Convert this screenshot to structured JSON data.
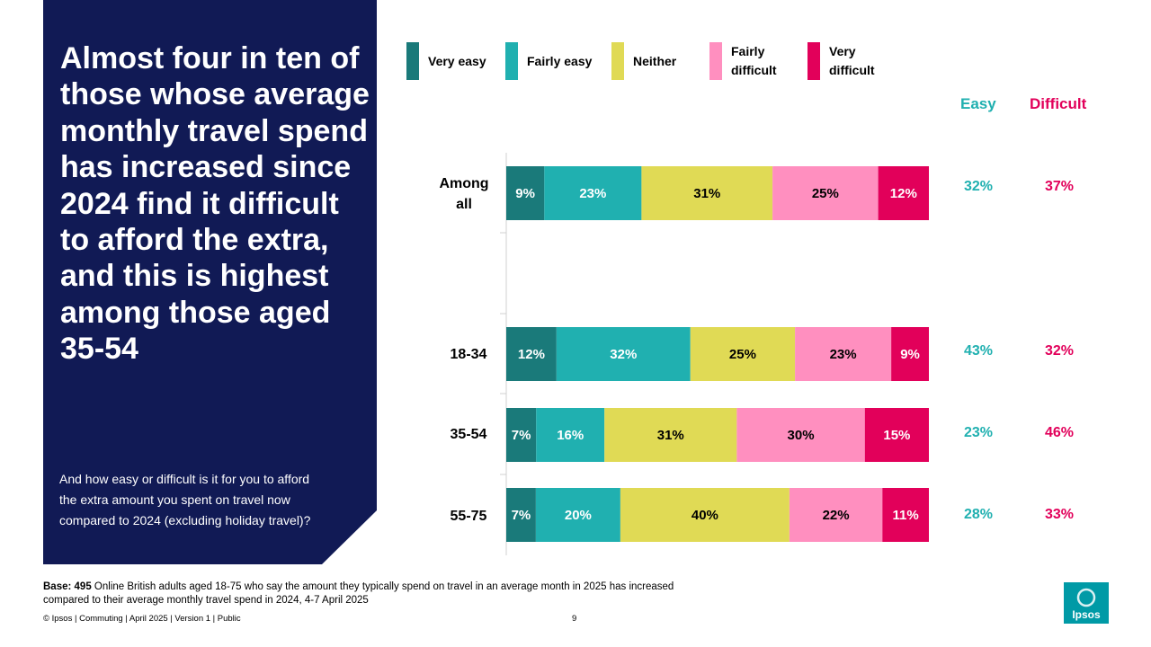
{
  "headline": "Almost four in ten of those whose average monthly travel spend has increased since 2024 find it difficult to afford the extra, and this is highest among those aged 35-54",
  "question": "And how easy or difficult is it for you to afford the extra amount you spent on travel now compared to 2024 (excluding holiday travel)?",
  "colors": {
    "panel": "#111A55",
    "very_easy": "#1A7A7A",
    "fairly_easy": "#20B0B0",
    "neither": "#E0DA55",
    "fairly_difficult": "#FF8FBF",
    "very_difficult": "#E2005A",
    "easy_text": "#20B0B0",
    "difficult_text": "#E2005A"
  },
  "legend": {
    "very_easy": "Very easy",
    "fairly_easy": "Fairly easy",
    "neither": "Neither",
    "fairly_difficult": [
      "Fairly",
      "difficult"
    ],
    "very_difficult": [
      "Very",
      "difficult"
    ]
  },
  "net_headers": {
    "easy": "Easy",
    "difficult": "Difficult"
  },
  "chart_data": {
    "type": "bar",
    "orientation": "horizontal",
    "stacked": true,
    "categories": [
      "Among all",
      "18-34",
      "35-54",
      "55-75"
    ],
    "category_lines": [
      [
        "Among",
        "all"
      ],
      [
        "18-34"
      ],
      [
        "35-54"
      ],
      [
        "55-75"
      ]
    ],
    "series": [
      {
        "name": "Very easy",
        "key": "very_easy",
        "values": [
          9,
          12,
          7,
          7
        ]
      },
      {
        "name": "Fairly easy",
        "key": "fairly_easy",
        "values": [
          23,
          32,
          16,
          20
        ]
      },
      {
        "name": "Neither",
        "key": "neither",
        "values": [
          31,
          25,
          31,
          40
        ]
      },
      {
        "name": "Fairly difficult",
        "key": "fairly_difficult",
        "values": [
          25,
          23,
          30,
          22
        ]
      },
      {
        "name": "Very difficult",
        "key": "very_difficult",
        "values": [
          12,
          9,
          15,
          11
        ]
      }
    ],
    "net_easy": [
      32,
      43,
      23,
      28
    ],
    "net_difficult": [
      37,
      32,
      46,
      33
    ],
    "xlim": [
      0,
      100
    ],
    "unit": "%"
  },
  "footer": {
    "base_label": "Base:",
    "base_n": "495",
    "base_text": "Online British adults aged 18-75 who say the amount they typically spend on travel in an average month in 2025 has increased compared to their average monthly travel spend in 2024, 4-7 April 2025",
    "copyright": "© Ipsos | Commuting | April 2025 | Version 1 | Public",
    "page": "9"
  },
  "logo_text": "Ipsos"
}
